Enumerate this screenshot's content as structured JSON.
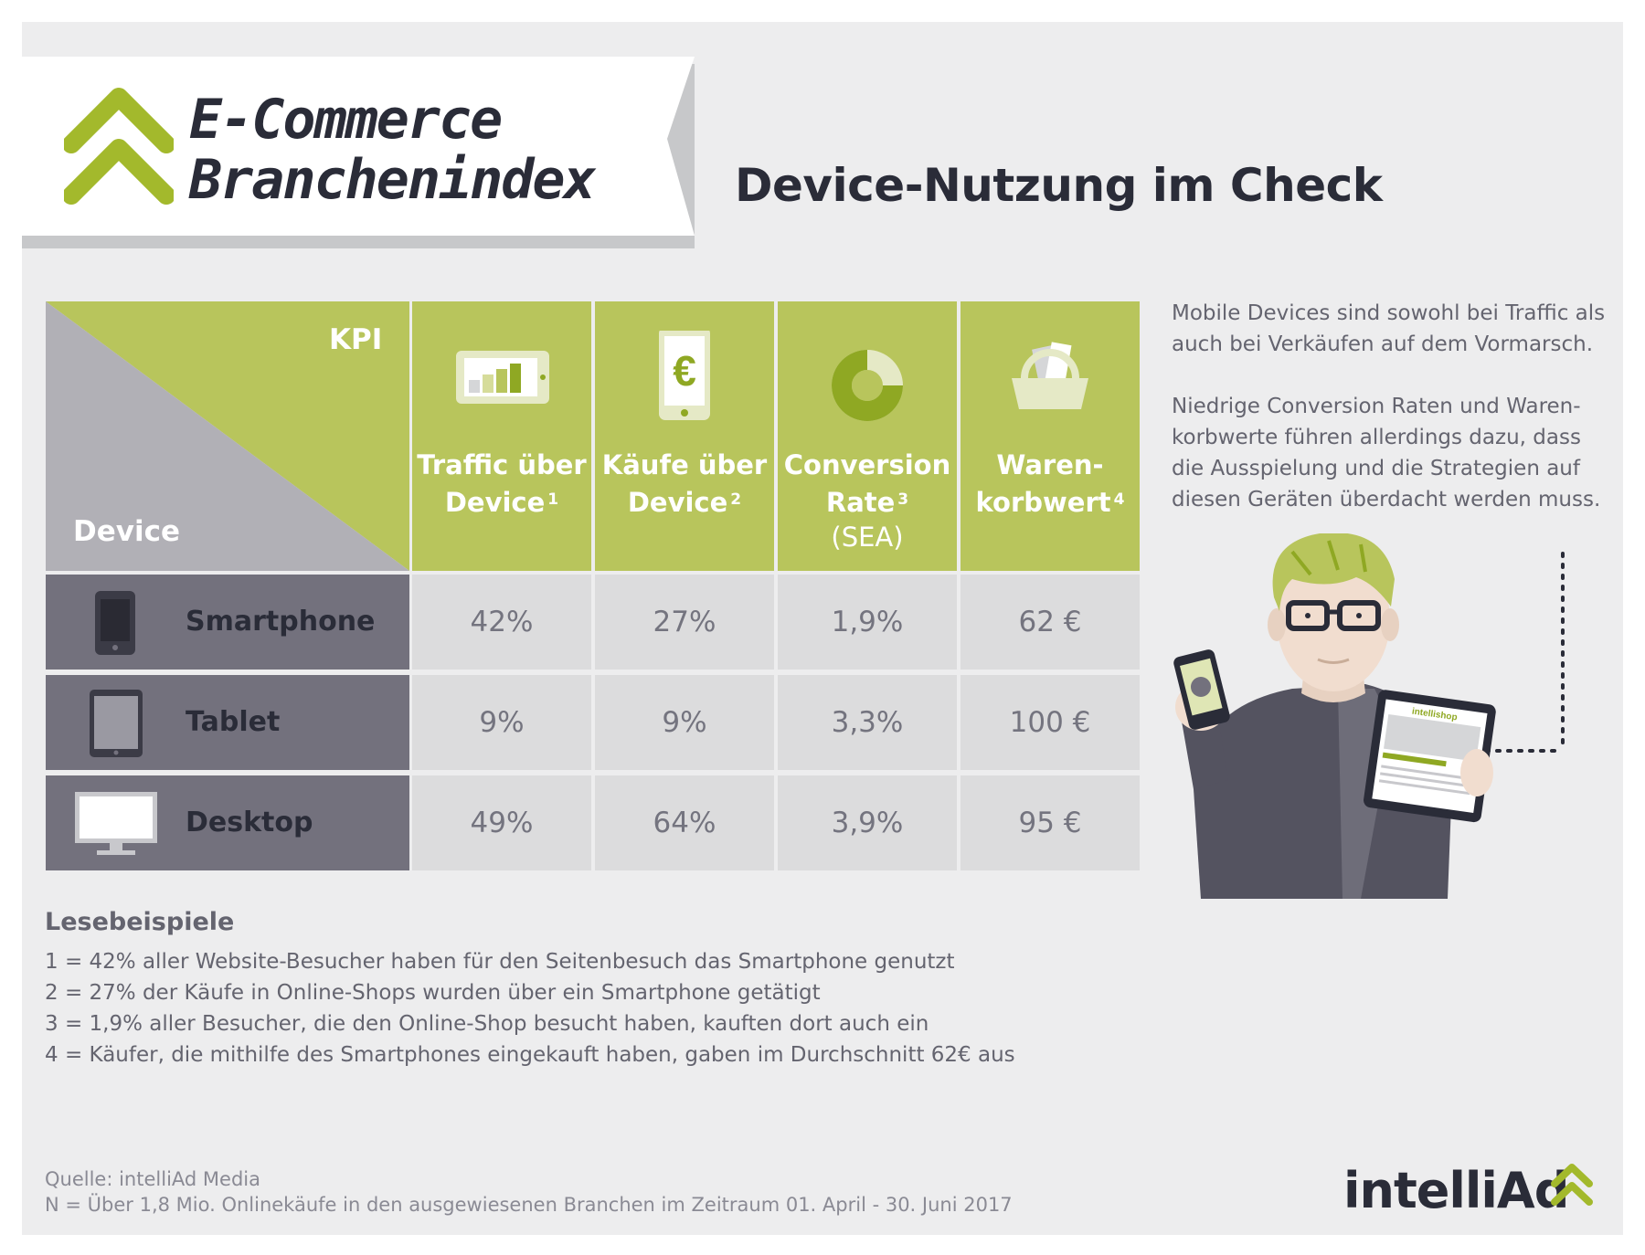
{
  "header": {
    "brand_line1": "E-Commerce",
    "brand_line2": "Branchenindex",
    "headline": "Device-Nutzung im Check"
  },
  "table": {
    "kpi_label": "KPI",
    "device_label": "Device",
    "columns": [
      {
        "line1": "Traffic über",
        "line2": "Device",
        "sup": "1",
        "sub": "",
        "icon": "bar-chart-tablet-icon"
      },
      {
        "line1": "Käufe über",
        "line2": "Device",
        "sup": "2",
        "sub": "",
        "icon": "euro-phone-icon"
      },
      {
        "line1": "Conversion",
        "line2": "Rate",
        "sup": "3",
        "sub": "(SEA)",
        "icon": "donut-icon"
      },
      {
        "line1": "Waren-",
        "line2": "korbwert",
        "sup": "4",
        "sub": "",
        "icon": "shopping-basket-icon"
      }
    ],
    "rows": [
      {
        "device": "Smartphone",
        "icon": "smartphone-icon",
        "values": [
          "42%",
          "27%",
          "1,9%",
          "62 €"
        ]
      },
      {
        "device": "Tablet",
        "icon": "tablet-icon",
        "values": [
          "9%",
          "9%",
          "3,3%",
          "100 €"
        ]
      },
      {
        "device": "Desktop",
        "icon": "desktop-icon",
        "values": [
          "49%",
          "64%",
          "3,9%",
          "95 €"
        ]
      }
    ]
  },
  "side_text": {
    "para1": [
      "Mobile Devices sind sowohl bei Traffic als",
      "auch bei Verkäufen auf dem Vormarsch."
    ],
    "para2": [
      "Niedrige Conversion Raten und Waren-",
      "korbwerte führen allerdings dazu, dass",
      "die Ausspielung und die Strategien auf",
      "diesen Geräten überdacht werden muss."
    ]
  },
  "illustration": {
    "tablet_brand": "intellishop"
  },
  "examples": {
    "title": "Lesebeispiele",
    "lines": [
      "1 = 42% aller Website-Besucher haben für den Seitenbesuch das Smartphone genutzt",
      "2 = 27% der Käufe in Online-Shops wurden über ein Smartphone getätigt",
      "3 = 1,9% aller Besucher, die den Online-Shop besucht haben, kauften dort auch ein",
      "4 = Käufer, die mithilfe des Smartphones eingekauft haben, gaben im Durchschnitt 62€ aus"
    ]
  },
  "footer": {
    "source": "Quelle: intelliAd Media",
    "sample": "N = Über 1,8 Mio. Onlinekäufe in den ausgewiesenen Branchen im Zeitraum 01. April - 30. Juni 2017",
    "logo": "intelliAd"
  },
  "colors": {
    "background": "#ededee",
    "accent_green": "#b8c55c",
    "dark_green": "#8fa823",
    "row_dark": "#73717d",
    "cell_light": "#dcdcdd",
    "text_dark": "#2a2c38"
  }
}
